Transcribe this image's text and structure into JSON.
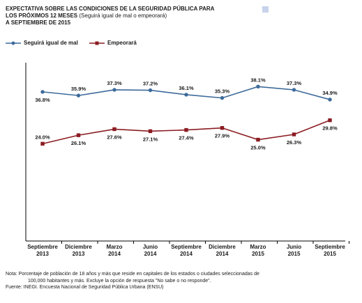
{
  "header": {
    "title_line1": "EXPECTATIVA SOBRE LAS CONDICIONES DE LA SEGURIDAD PÚBLICA PARA",
    "title_line2_bold": "LOS PRÓXIMOS 12 MESES",
    "title_line2_sub": "(Seguirá igual de mal o empeorará)",
    "title_line3": "A SEPTIEMBRE DE 2015"
  },
  "chart_data": {
    "type": "line",
    "categories": [
      [
        "Septiembre",
        "2013"
      ],
      [
        "Diciembre",
        "2013"
      ],
      [
        "Marzo",
        "2014"
      ],
      [
        "Junio",
        "2014"
      ],
      [
        "Septiembre",
        "2014"
      ],
      [
        "Diciembre",
        "2014"
      ],
      [
        "Marzo",
        "2015"
      ],
      [
        "Junio",
        "2015"
      ],
      [
        "Septiembre",
        "2015"
      ]
    ],
    "series": [
      {
        "name": "Seguirá igual de mal",
        "color": "#3d6a9a",
        "marker": "circle",
        "values": [
          36.8,
          35.9,
          37.3,
          37.2,
          36.1,
          35.3,
          38.1,
          37.3,
          34.9
        ],
        "labels": [
          "36.8%",
          "35.9%",
          "37.3%",
          "37.2%",
          "36.1%",
          "35.3%",
          "38.1%",
          "37.3%",
          "34.9%"
        ],
        "label_side": [
          "below",
          "above",
          "above",
          "above",
          "above",
          "above",
          "above",
          "above",
          "above"
        ]
      },
      {
        "name": "Empeorará",
        "color": "#8b1c22",
        "marker": "square",
        "values": [
          24.0,
          26.1,
          27.6,
          27.1,
          27.4,
          27.9,
          25.0,
          26.3,
          29.8
        ],
        "labels": [
          "24.0%",
          "26.1%",
          "27.6%",
          "27.1%",
          "27.4%",
          "27.9%",
          "25.0%",
          "26.3%",
          "29.8%"
        ],
        "label_side": [
          "above",
          "below",
          "below",
          "below",
          "below",
          "below",
          "below",
          "below",
          "below"
        ]
      }
    ],
    "ylim": [
      0,
      44
    ],
    "grid": false,
    "axis_lines": true,
    "legend_position": "top-left"
  },
  "footnote": {
    "line1": "Nota: Porcentaje de población de 18 años y más que reside en capitales de los estados o ciudades seleccionadas de",
    "line2": "100,000 habitantes y más. Excluye la opción de respuesta \"No sabe o no responde\".",
    "line3": "Fuente: INEGI. Encuesta Nacional de Seguridad Pública Urbana (ENSU)"
  }
}
